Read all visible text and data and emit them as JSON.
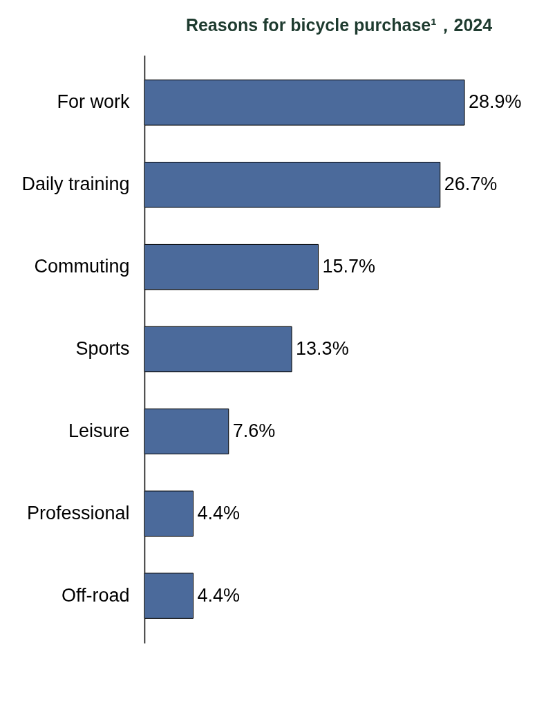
{
  "chart_data": {
    "type": "bar",
    "orientation": "horizontal",
    "title": "Reasons for bicycle purchase¹，2024",
    "categories": [
      "For work",
      "Daily training",
      "Commuting",
      "Sports",
      "Leisure",
      "Professional",
      "Off-road"
    ],
    "values": [
      28.9,
      26.7,
      15.7,
      13.3,
      7.6,
      4.4,
      4.4
    ],
    "value_labels": [
      "28.9%",
      "26.7%",
      "15.7%",
      "13.3%",
      "7.6%",
      "4.4%",
      "4.4%"
    ],
    "color": "#4b6a9b",
    "tick_labels": "y"
  }
}
